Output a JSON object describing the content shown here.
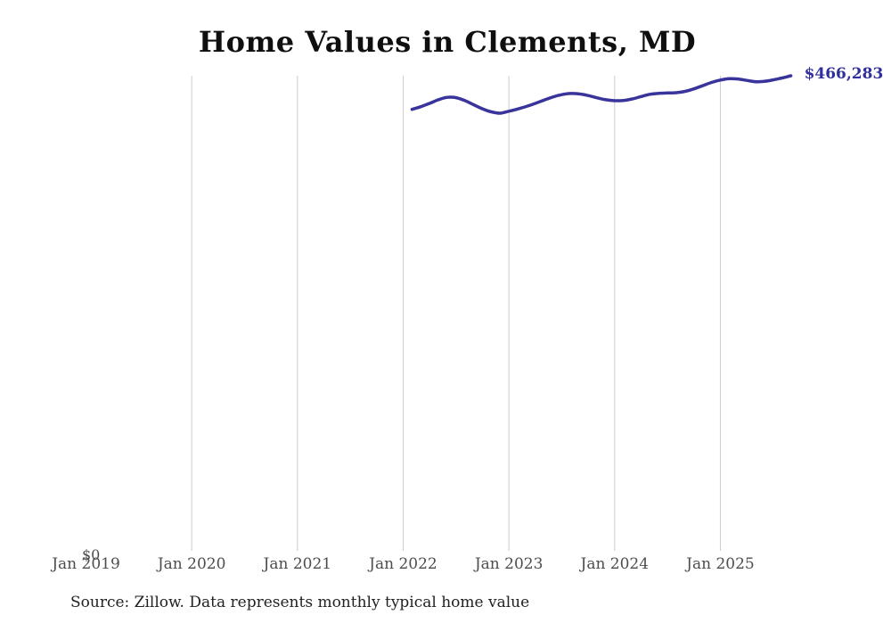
{
  "page": {
    "title": "Home Values in Clements, MD",
    "source_note": "Source: Zillow. Data represents monthly typical home value"
  },
  "y_axis": {
    "zero_label": "$0"
  },
  "x_axis": {
    "tick_labels": [
      "Jan 2019",
      "Jan 2020",
      "Jan 2021",
      "Jan 2022",
      "Jan 2023",
      "Jan 2024",
      "Jan 2025"
    ]
  },
  "end_label": "$466,283",
  "colors": {
    "line": "#39339c",
    "end_label": "#2f2f9d",
    "gridline": "#cccccc",
    "axis_text": "#4d4d4d",
    "title_text": "#0f0f0f",
    "source_text": "#222222",
    "background": "#ffffff"
  },
  "chart_data": {
    "type": "line",
    "title": "Home Values in Clements, MD",
    "xlabel": "",
    "ylabel": "",
    "ylim": [
      0,
      466283
    ],
    "legend": "none",
    "gridlines": "vertical-at-each-january",
    "x_tick_labels": [
      "Jan 2019",
      "Jan 2020",
      "Jan 2021",
      "Jan 2022",
      "Jan 2023",
      "Jan 2024",
      "Jan 2025"
    ],
    "start_month_offset_from_jan2019": 37,
    "months": [
      "Feb 2022",
      "Mar 2022",
      "Apr 2022",
      "May 2022",
      "Jun 2022",
      "Jul 2022",
      "Aug 2022",
      "Sep 2022",
      "Oct 2022",
      "Nov 2022",
      "Dec 2022",
      "Jan 2023",
      "Feb 2023",
      "Mar 2023",
      "Apr 2023",
      "May 2023",
      "Jun 2023",
      "Jul 2023",
      "Aug 2023",
      "Sep 2023",
      "Oct 2023",
      "Nov 2023",
      "Dec 2023",
      "Jan 2024",
      "Feb 2024",
      "Mar 2024",
      "Apr 2024",
      "May 2024",
      "Jun 2024",
      "Jul 2024",
      "Aug 2024",
      "Sep 2024",
      "Oct 2024",
      "Nov 2024",
      "Dec 2024",
      "Jan 2025",
      "Feb 2025",
      "Mar 2025",
      "Apr 2025",
      "May 2025",
      "Jun 2025",
      "Jul 2025",
      "Aug 2025",
      "Sep 2025"
    ],
    "values": [
      433000,
      435600,
      438900,
      442500,
      444900,
      444600,
      441700,
      437600,
      433500,
      430500,
      429200,
      431100,
      433300,
      435900,
      438900,
      442200,
      445300,
      447600,
      448700,
      448300,
      446700,
      444500,
      442500,
      441600,
      441800,
      443300,
      445700,
      447900,
      448900,
      449200,
      449500,
      450800,
      453300,
      456500,
      459700,
      462000,
      463400,
      463100,
      461700,
      460400,
      460800,
      462200,
      464100,
      466283
    ],
    "end_annotation": "$466,283"
  }
}
